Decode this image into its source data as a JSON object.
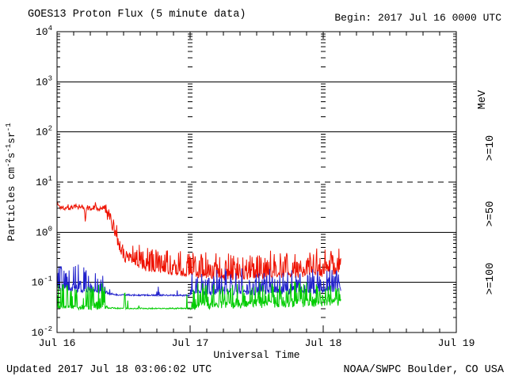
{
  "header": {
    "title": "GOES13 Proton Flux (5 minute data)",
    "begin": "Begin: 2017 Jul 16 0000 UTC"
  },
  "footer": {
    "updated": "Updated 2017 Jul 18 03:06:02 UTC",
    "source": "NOAA/SWPC Boulder, CO USA"
  },
  "colors": {
    "p10": "#ee1100",
    "p50": "#2222cc",
    "p100": "#00cc00",
    "axis": "#000000",
    "background": "#ffffff"
  },
  "legend": {
    "unit": "MeV",
    "entries": [
      {
        "label": ">=10",
        "color_key": "p10"
      },
      {
        "label": ">=50",
        "color_key": "p50"
      },
      {
        "label": ">=100",
        "color_key": "p100"
      }
    ]
  },
  "chart_data": {
    "type": "line",
    "title": "GOES13 Proton Flux (5 minute data)",
    "begin": "2017 Jul 16 0000 UTC",
    "updated": "2017 Jul 18 03:06:02 UTC",
    "source": "NOAA/SWPC Boulder, CO USA",
    "xlabel": "Universal Time",
    "ylabel_plain": "Particles cm-2 s-1 sr-1",
    "ylabel_parts": [
      [
        "Particles cm",
        0
      ],
      [
        "-2",
        1
      ],
      [
        "s",
        0
      ],
      [
        "-1",
        1
      ],
      [
        "sr",
        0
      ],
      [
        "-1",
        1
      ]
    ],
    "x_unit": "hours since 2017-07-16 00:00 UTC",
    "x_hours_range": [
      0,
      72
    ],
    "x_day_ticks": [
      {
        "hour": 0,
        "label": "Jul 16"
      },
      {
        "hour": 24,
        "label": "Jul 17"
      },
      {
        "hour": 48,
        "label": "Jul 18"
      },
      {
        "hour": 72,
        "label": "Jul 19"
      }
    ],
    "x_minor_tick_hours": 3,
    "y_scale": "log10",
    "y_exponent_range": [
      -2,
      4
    ],
    "y_major_tick_exponents": [
      4,
      3,
      2,
      1,
      0,
      -1,
      -2
    ],
    "h_reference_lines": [
      {
        "exp": 3,
        "style": "solid"
      },
      {
        "exp": 2,
        "style": "solid"
      },
      {
        "exp": 1,
        "style": "dashed"
      },
      {
        "exp": 0,
        "style": "solid"
      },
      {
        "exp": -1,
        "style": "solid"
      }
    ],
    "v_reference_hours": [
      24,
      48
    ],
    "sample_interval_minutes": 5,
    "data_end_hour": 51.2,
    "noise_seed": 1337,
    "noise_segments_format": "[t0_hour, t1_hour, jitter_log10, spike_probability, spike_max_log10]",
    "series": [
      {
        "name": "Proton flux >=10 MeV",
        "legend": ">=10",
        "color_key": "p10",
        "baseline_keypoints_log10": [
          [
            0,
            0.58
          ],
          [
            0.5,
            0.5
          ],
          [
            4.9,
            0.5
          ],
          [
            5.1,
            0.24
          ],
          [
            5.4,
            0.5
          ],
          [
            8.7,
            0.48
          ],
          [
            9.3,
            0.33
          ],
          [
            10.6,
            0.0
          ],
          [
            11.5,
            -0.35
          ],
          [
            13,
            -0.55
          ],
          [
            16,
            -0.72
          ],
          [
            20,
            -0.78
          ],
          [
            24,
            -0.85
          ],
          [
            32,
            -0.9
          ],
          [
            40,
            -0.86
          ],
          [
            48,
            -0.83
          ],
          [
            51.2,
            -0.76
          ]
        ],
        "noise_segments": [
          [
            0,
            8.7,
            0.06,
            0.08,
            0.1
          ],
          [
            8.7,
            13,
            0.15,
            0.2,
            0.2
          ],
          [
            13,
            24,
            0.06,
            0.45,
            0.42
          ],
          [
            24,
            51.2,
            0.06,
            0.5,
            0.48
          ]
        ]
      },
      {
        "name": "Proton flux >=50 MeV",
        "legend": ">=50",
        "color_key": "p50",
        "baseline_keypoints_log10": [
          [
            0,
            -1.1
          ],
          [
            2,
            -1.13
          ],
          [
            6,
            -1.17
          ],
          [
            9,
            -1.22
          ],
          [
            11,
            -1.25
          ],
          [
            24,
            -1.26
          ],
          [
            24.17,
            -1.2
          ],
          [
            48,
            -1.18
          ],
          [
            51.2,
            -1.15
          ]
        ],
        "noise_segments": [
          [
            0,
            6,
            0.05,
            0.45,
            0.5
          ],
          [
            6,
            9,
            0.04,
            0.3,
            0.4
          ],
          [
            9,
            24,
            0.015,
            0.05,
            0.28
          ],
          [
            24,
            51.2,
            0.06,
            0.45,
            0.42
          ]
        ]
      },
      {
        "name": "Proton flux >=100 MeV",
        "legend": ">=100",
        "color_key": "p100",
        "baseline_keypoints_log10": [
          [
            0,
            -1.5
          ],
          [
            9,
            -1.51
          ],
          [
            12.05,
            -1.52
          ],
          [
            12.2,
            -1.12
          ],
          [
            12.4,
            -1.52
          ],
          [
            24,
            -1.52
          ],
          [
            24.17,
            -1.46
          ],
          [
            51.2,
            -1.4
          ]
        ],
        "noise_segments": [
          [
            0,
            9,
            0.04,
            0.4,
            0.48
          ],
          [
            9,
            24,
            0.012,
            0.035,
            0.3
          ],
          [
            24,
            51.2,
            0.08,
            0.4,
            0.42
          ]
        ]
      }
    ]
  }
}
